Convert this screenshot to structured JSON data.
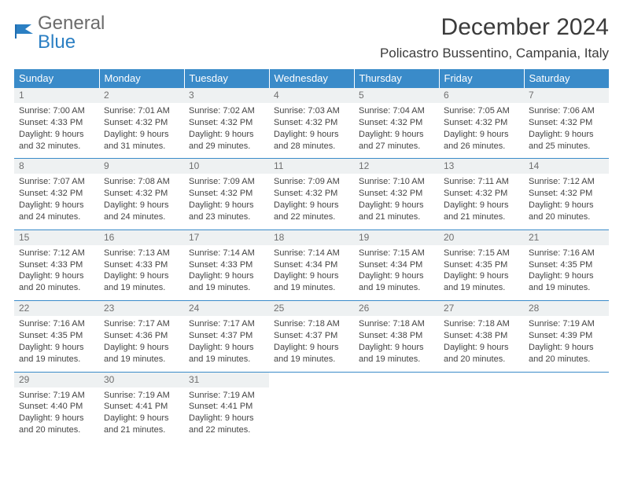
{
  "logo": {
    "word1": "General",
    "word2": "Blue"
  },
  "title": "December 2024",
  "location": "Policastro Bussentino, Campania, Italy",
  "dayHeaders": [
    "Sunday",
    "Monday",
    "Tuesday",
    "Wednesday",
    "Thursday",
    "Friday",
    "Saturday"
  ],
  "colors": {
    "headerBg": "#3a8bc9",
    "headerText": "#ffffff",
    "rowBorder": "#3a8bc9",
    "dayNumBg": "#eef1f2",
    "logoGray": "#6b6b6b",
    "logoBlue": "#2b7fc3"
  },
  "weeks": [
    [
      {
        "n": "1",
        "sunrise": "Sunrise: 7:00 AM",
        "sunset": "Sunset: 4:33 PM",
        "day1": "Daylight: 9 hours",
        "day2": "and 32 minutes."
      },
      {
        "n": "2",
        "sunrise": "Sunrise: 7:01 AM",
        "sunset": "Sunset: 4:32 PM",
        "day1": "Daylight: 9 hours",
        "day2": "and 31 minutes."
      },
      {
        "n": "3",
        "sunrise": "Sunrise: 7:02 AM",
        "sunset": "Sunset: 4:32 PM",
        "day1": "Daylight: 9 hours",
        "day2": "and 29 minutes."
      },
      {
        "n": "4",
        "sunrise": "Sunrise: 7:03 AM",
        "sunset": "Sunset: 4:32 PM",
        "day1": "Daylight: 9 hours",
        "day2": "and 28 minutes."
      },
      {
        "n": "5",
        "sunrise": "Sunrise: 7:04 AM",
        "sunset": "Sunset: 4:32 PM",
        "day1": "Daylight: 9 hours",
        "day2": "and 27 minutes."
      },
      {
        "n": "6",
        "sunrise": "Sunrise: 7:05 AM",
        "sunset": "Sunset: 4:32 PM",
        "day1": "Daylight: 9 hours",
        "day2": "and 26 minutes."
      },
      {
        "n": "7",
        "sunrise": "Sunrise: 7:06 AM",
        "sunset": "Sunset: 4:32 PM",
        "day1": "Daylight: 9 hours",
        "day2": "and 25 minutes."
      }
    ],
    [
      {
        "n": "8",
        "sunrise": "Sunrise: 7:07 AM",
        "sunset": "Sunset: 4:32 PM",
        "day1": "Daylight: 9 hours",
        "day2": "and 24 minutes."
      },
      {
        "n": "9",
        "sunrise": "Sunrise: 7:08 AM",
        "sunset": "Sunset: 4:32 PM",
        "day1": "Daylight: 9 hours",
        "day2": "and 24 minutes."
      },
      {
        "n": "10",
        "sunrise": "Sunrise: 7:09 AM",
        "sunset": "Sunset: 4:32 PM",
        "day1": "Daylight: 9 hours",
        "day2": "and 23 minutes."
      },
      {
        "n": "11",
        "sunrise": "Sunrise: 7:09 AM",
        "sunset": "Sunset: 4:32 PM",
        "day1": "Daylight: 9 hours",
        "day2": "and 22 minutes."
      },
      {
        "n": "12",
        "sunrise": "Sunrise: 7:10 AM",
        "sunset": "Sunset: 4:32 PM",
        "day1": "Daylight: 9 hours",
        "day2": "and 21 minutes."
      },
      {
        "n": "13",
        "sunrise": "Sunrise: 7:11 AM",
        "sunset": "Sunset: 4:32 PM",
        "day1": "Daylight: 9 hours",
        "day2": "and 21 minutes."
      },
      {
        "n": "14",
        "sunrise": "Sunrise: 7:12 AM",
        "sunset": "Sunset: 4:32 PM",
        "day1": "Daylight: 9 hours",
        "day2": "and 20 minutes."
      }
    ],
    [
      {
        "n": "15",
        "sunrise": "Sunrise: 7:12 AM",
        "sunset": "Sunset: 4:33 PM",
        "day1": "Daylight: 9 hours",
        "day2": "and 20 minutes."
      },
      {
        "n": "16",
        "sunrise": "Sunrise: 7:13 AM",
        "sunset": "Sunset: 4:33 PM",
        "day1": "Daylight: 9 hours",
        "day2": "and 19 minutes."
      },
      {
        "n": "17",
        "sunrise": "Sunrise: 7:14 AM",
        "sunset": "Sunset: 4:33 PM",
        "day1": "Daylight: 9 hours",
        "day2": "and 19 minutes."
      },
      {
        "n": "18",
        "sunrise": "Sunrise: 7:14 AM",
        "sunset": "Sunset: 4:34 PM",
        "day1": "Daylight: 9 hours",
        "day2": "and 19 minutes."
      },
      {
        "n": "19",
        "sunrise": "Sunrise: 7:15 AM",
        "sunset": "Sunset: 4:34 PM",
        "day1": "Daylight: 9 hours",
        "day2": "and 19 minutes."
      },
      {
        "n": "20",
        "sunrise": "Sunrise: 7:15 AM",
        "sunset": "Sunset: 4:35 PM",
        "day1": "Daylight: 9 hours",
        "day2": "and 19 minutes."
      },
      {
        "n": "21",
        "sunrise": "Sunrise: 7:16 AM",
        "sunset": "Sunset: 4:35 PM",
        "day1": "Daylight: 9 hours",
        "day2": "and 19 minutes."
      }
    ],
    [
      {
        "n": "22",
        "sunrise": "Sunrise: 7:16 AM",
        "sunset": "Sunset: 4:35 PM",
        "day1": "Daylight: 9 hours",
        "day2": "and 19 minutes."
      },
      {
        "n": "23",
        "sunrise": "Sunrise: 7:17 AM",
        "sunset": "Sunset: 4:36 PM",
        "day1": "Daylight: 9 hours",
        "day2": "and 19 minutes."
      },
      {
        "n": "24",
        "sunrise": "Sunrise: 7:17 AM",
        "sunset": "Sunset: 4:37 PM",
        "day1": "Daylight: 9 hours",
        "day2": "and 19 minutes."
      },
      {
        "n": "25",
        "sunrise": "Sunrise: 7:18 AM",
        "sunset": "Sunset: 4:37 PM",
        "day1": "Daylight: 9 hours",
        "day2": "and 19 minutes."
      },
      {
        "n": "26",
        "sunrise": "Sunrise: 7:18 AM",
        "sunset": "Sunset: 4:38 PM",
        "day1": "Daylight: 9 hours",
        "day2": "and 19 minutes."
      },
      {
        "n": "27",
        "sunrise": "Sunrise: 7:18 AM",
        "sunset": "Sunset: 4:38 PM",
        "day1": "Daylight: 9 hours",
        "day2": "and 20 minutes."
      },
      {
        "n": "28",
        "sunrise": "Sunrise: 7:19 AM",
        "sunset": "Sunset: 4:39 PM",
        "day1": "Daylight: 9 hours",
        "day2": "and 20 minutes."
      }
    ],
    [
      {
        "n": "29",
        "sunrise": "Sunrise: 7:19 AM",
        "sunset": "Sunset: 4:40 PM",
        "day1": "Daylight: 9 hours",
        "day2": "and 20 minutes."
      },
      {
        "n": "30",
        "sunrise": "Sunrise: 7:19 AM",
        "sunset": "Sunset: 4:41 PM",
        "day1": "Daylight: 9 hours",
        "day2": "and 21 minutes."
      },
      {
        "n": "31",
        "sunrise": "Sunrise: 7:19 AM",
        "sunset": "Sunset: 4:41 PM",
        "day1": "Daylight: 9 hours",
        "day2": "and 22 minutes."
      },
      {
        "empty": true
      },
      {
        "empty": true
      },
      {
        "empty": true
      },
      {
        "empty": true
      }
    ]
  ]
}
